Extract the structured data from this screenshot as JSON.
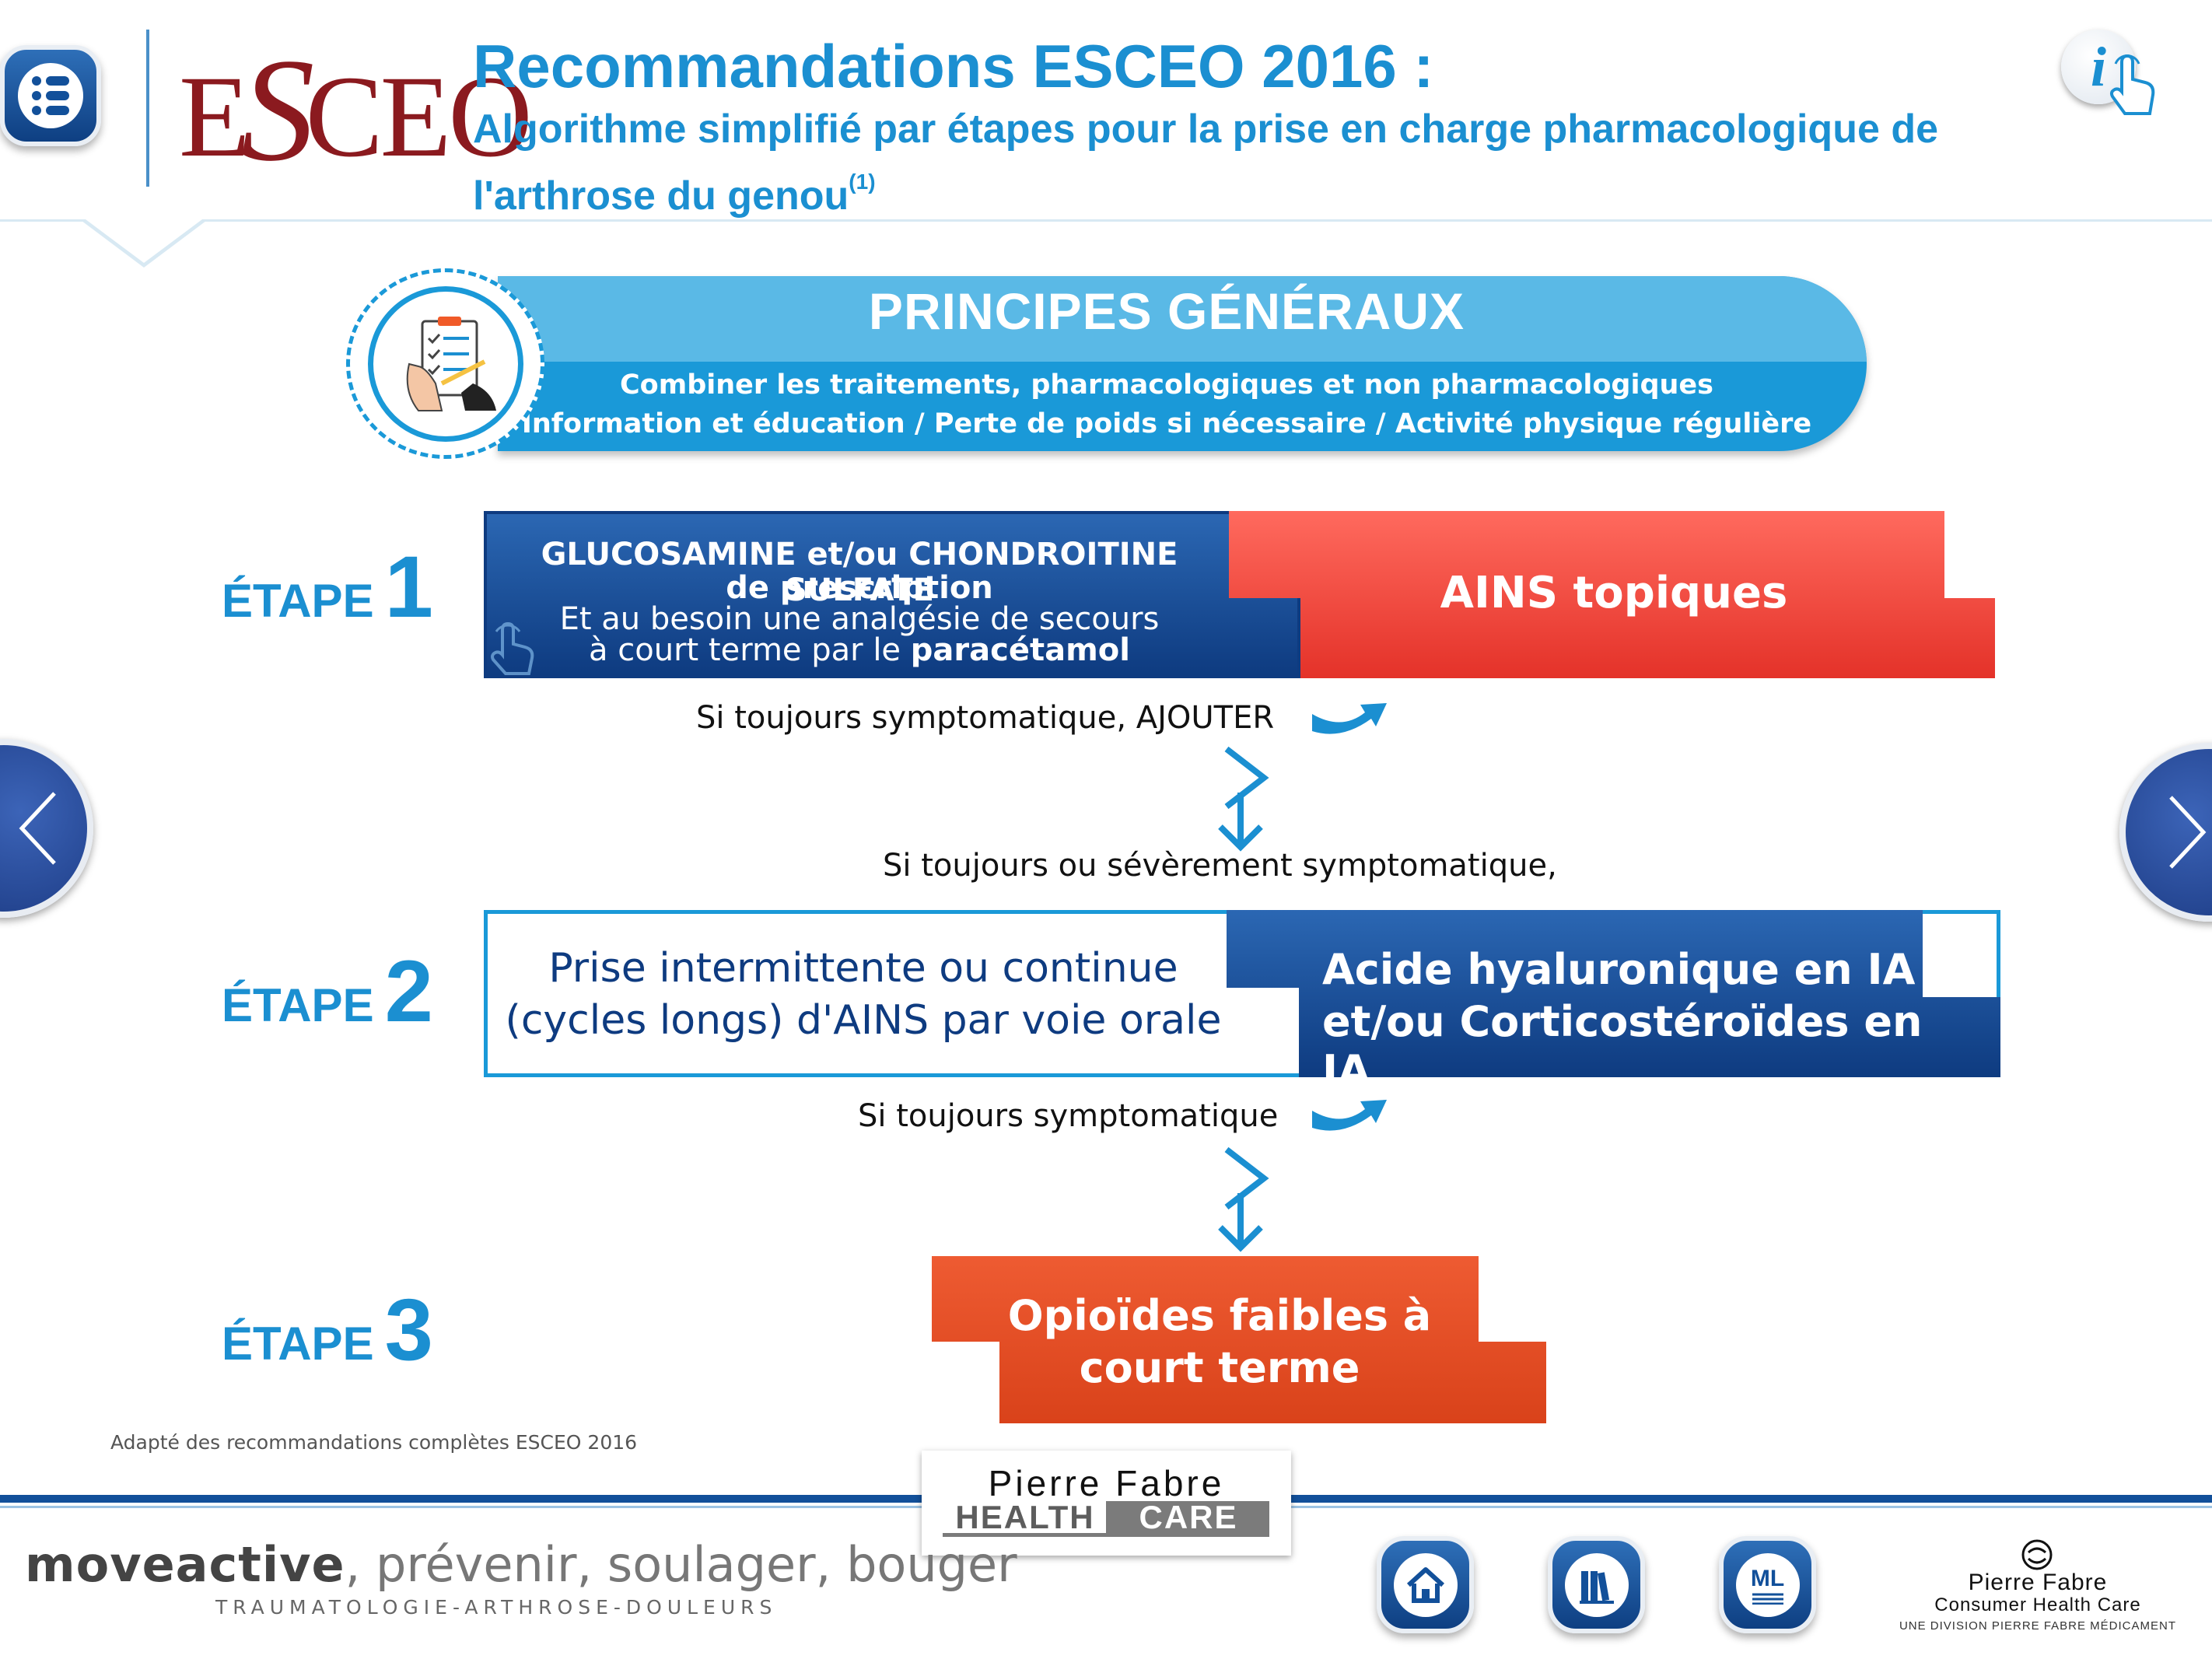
{
  "header": {
    "title": "Recommandations ESCEO 2016 :",
    "subtitle_line1": "Algorithme simplifié par étapes pour la prise en charge pharmacologique de",
    "subtitle_line2": "l'arthrose du genou",
    "subtitle_ref": "(1)",
    "logo_text_e": "E",
    "logo_text_s": "S",
    "logo_text_ceo": "CEO",
    "info_label": "i"
  },
  "principes": {
    "title": "PRINCIPES GÉNÉRAUX",
    "line1": "Combiner les traitements, pharmacologiques et non pharmacologiques",
    "line2": "Information et éducation / Perte de poids si nécessaire / Activité physique régulière"
  },
  "step_word": "ÉTAPE",
  "steps": [
    {
      "number": "1",
      "blue_line1": "GLUCOSAMINE et/ou CHONDROITINE SULFATE",
      "blue_line2": "de prescription",
      "blue_line3": "Et au besoin une analgésie de secours",
      "blue_line4_pre": "à court terme par le ",
      "blue_line4_bold": "paracétamol",
      "red_label": "AINS topiques",
      "note": "Si toujours symptomatique, AJOUTER"
    },
    {
      "number": "2",
      "pre_note": "Si toujours ou sévèrement symptomatique,",
      "white_line1": "Prise intermittente ou continue",
      "white_line2": "(cycles longs) d'AINS par voie orale",
      "blue_line1": "Acide hyaluronique en IA",
      "blue_line2": "et/ou Corticostéroïdes en IA",
      "note": "Si toujours symptomatique"
    },
    {
      "number": "3",
      "line1": "Opioïdes faibles à",
      "line2": "court terme"
    }
  ],
  "source_note": "Adapté des recommandations complètes ESCEO 2016",
  "footer": {
    "pf_hc_name": "Pierre Fabre",
    "pf_hc_health": "HEALTH",
    "pf_hc_care": "CARE",
    "moveactive_brand": "moveactive",
    "moveactive_tagline": ", prévenir, soulager, bouger",
    "moveactive_sub": "TRAUMATOLOGIE-ARTHROSE-DOULEURS",
    "ml_label": "ML",
    "pf_chc_line1": "Pierre Fabre",
    "pf_chc_line2": "Consumer Health Care",
    "pf_chc_line3": "UNE DIVISION PIERRE FABRE MÉDICAMENT"
  },
  "colors": {
    "accent_blue": "#1b8fd1",
    "dark_blue": "#0e3b80",
    "red": "#e43229",
    "orange": "#d9421a",
    "esceo_red": "#8b1a1f"
  },
  "icons": [
    "menu-icon",
    "info-tap-icon",
    "checklist-icon",
    "tap-hand-icon",
    "swoosh-arrow-icon",
    "chevron-down-icon",
    "chevron-left-icon",
    "chevron-right-icon",
    "home-icon",
    "books-icon",
    "ml-icon",
    "pierre-fabre-icon"
  ]
}
